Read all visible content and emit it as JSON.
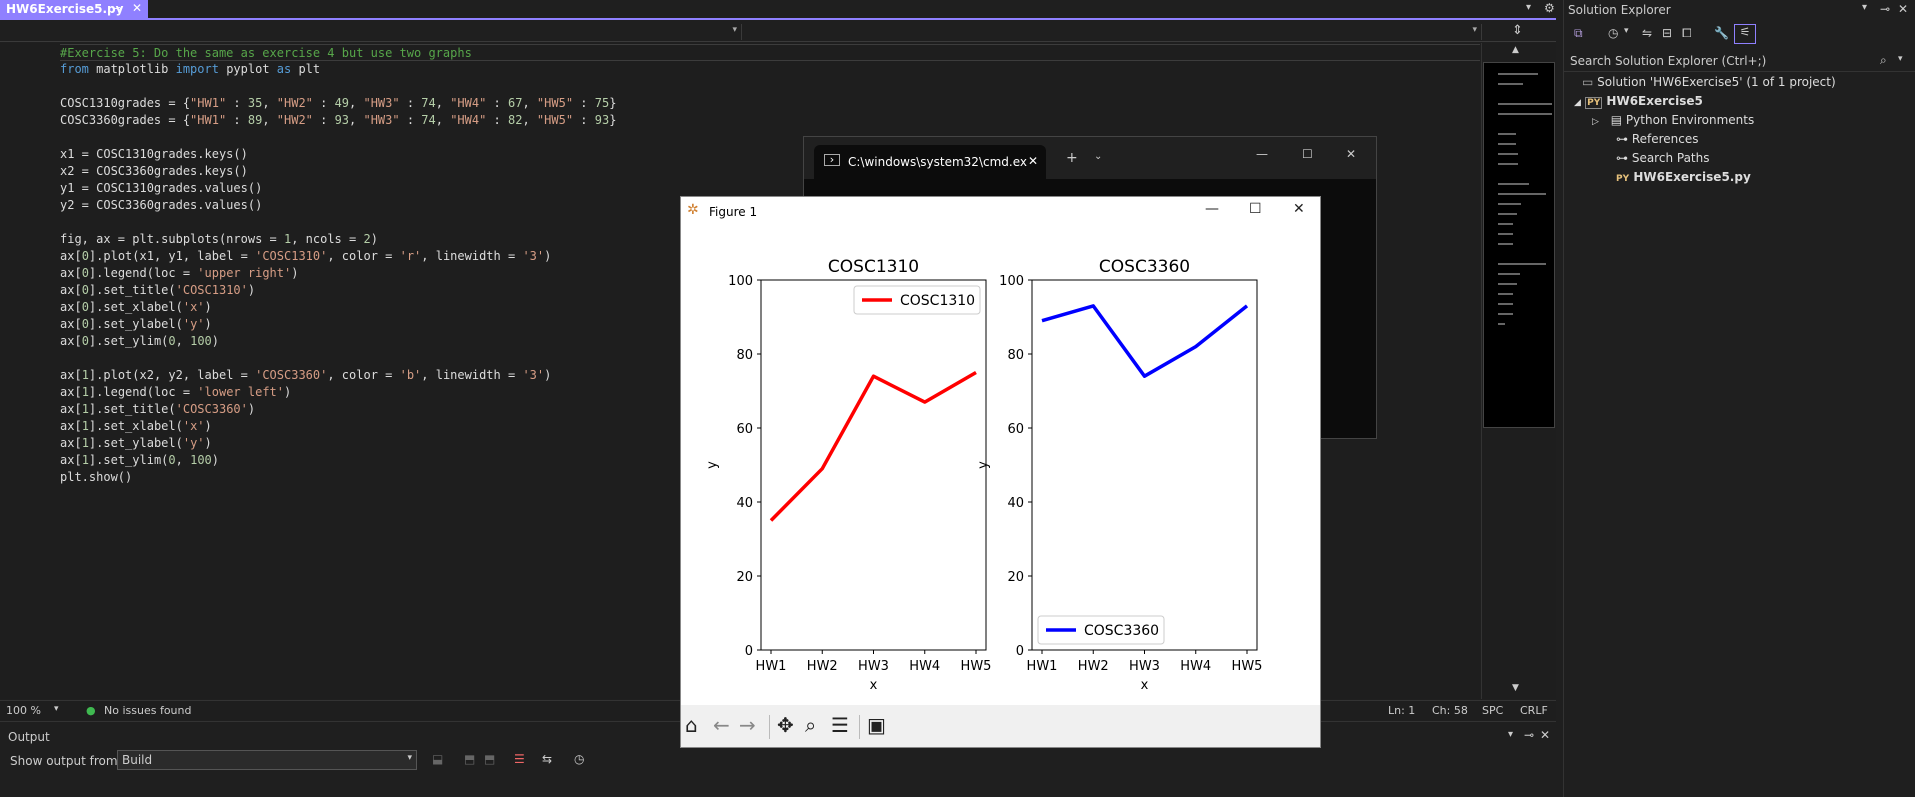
{
  "tab": {
    "title": "HW6Exercise5.py",
    "pin": "⊸",
    "close": "✕"
  },
  "editor": {
    "lines": [
      [
        {
          "t": "#Exercise 5: Do the same as exercise 4 but use two graphs",
          "c": "com"
        }
      ],
      [
        {
          "t": "from",
          "c": "kw"
        },
        {
          "t": " matplotlib ",
          "c": ""
        },
        {
          "t": "import",
          "c": "kw"
        },
        {
          "t": " pyplot ",
          "c": ""
        },
        {
          "t": "as",
          "c": "kw"
        },
        {
          "t": " plt",
          "c": ""
        }
      ],
      [],
      [
        {
          "t": "COSC1310grades = {",
          "c": ""
        },
        {
          "t": "\"HW1\"",
          "c": "str"
        },
        {
          "t": " : ",
          "c": ""
        },
        {
          "t": "35",
          "c": "num"
        },
        {
          "t": ", ",
          "c": ""
        },
        {
          "t": "\"HW2\"",
          "c": "str"
        },
        {
          "t": " : ",
          "c": ""
        },
        {
          "t": "49",
          "c": "num"
        },
        {
          "t": ", ",
          "c": ""
        },
        {
          "t": "\"HW3\"",
          "c": "str"
        },
        {
          "t": " : ",
          "c": ""
        },
        {
          "t": "74",
          "c": "num"
        },
        {
          "t": ", ",
          "c": ""
        },
        {
          "t": "\"HW4\"",
          "c": "str"
        },
        {
          "t": " : ",
          "c": ""
        },
        {
          "t": "67",
          "c": "num"
        },
        {
          "t": ", ",
          "c": ""
        },
        {
          "t": "\"HW5\"",
          "c": "str"
        },
        {
          "t": " : ",
          "c": ""
        },
        {
          "t": "75",
          "c": "num"
        },
        {
          "t": "}",
          "c": ""
        }
      ],
      [
        {
          "t": "COSC3360grades = {",
          "c": ""
        },
        {
          "t": "\"HW1\"",
          "c": "str"
        },
        {
          "t": " : ",
          "c": ""
        },
        {
          "t": "89",
          "c": "num"
        },
        {
          "t": ", ",
          "c": ""
        },
        {
          "t": "\"HW2\"",
          "c": "str"
        },
        {
          "t": " : ",
          "c": ""
        },
        {
          "t": "93",
          "c": "num"
        },
        {
          "t": ", ",
          "c": ""
        },
        {
          "t": "\"HW3\"",
          "c": "str"
        },
        {
          "t": " : ",
          "c": ""
        },
        {
          "t": "74",
          "c": "num"
        },
        {
          "t": ", ",
          "c": ""
        },
        {
          "t": "\"HW4\"",
          "c": "str"
        },
        {
          "t": " : ",
          "c": ""
        },
        {
          "t": "82",
          "c": "num"
        },
        {
          "t": ", ",
          "c": ""
        },
        {
          "t": "\"HW5\"",
          "c": "str"
        },
        {
          "t": " : ",
          "c": ""
        },
        {
          "t": "93",
          "c": "num"
        },
        {
          "t": "}",
          "c": ""
        }
      ],
      [],
      [
        {
          "t": "x1 = COSC1310grades.keys()",
          "c": ""
        }
      ],
      [
        {
          "t": "x2 = COSC3360grades.keys()",
          "c": ""
        }
      ],
      [
        {
          "t": "y1 = COSC1310grades.values()",
          "c": ""
        }
      ],
      [
        {
          "t": "y2 = COSC3360grades.values()",
          "c": ""
        }
      ],
      [],
      [
        {
          "t": "fig, ax = plt.subplots(nrows = ",
          "c": ""
        },
        {
          "t": "1",
          "c": "num"
        },
        {
          "t": ", ncols = ",
          "c": ""
        },
        {
          "t": "2",
          "c": "num"
        },
        {
          "t": ")",
          "c": ""
        }
      ],
      [
        {
          "t": "ax[",
          "c": ""
        },
        {
          "t": "0",
          "c": "num"
        },
        {
          "t": "].plot(x1, y1, label = ",
          "c": ""
        },
        {
          "t": "'COSC1310'",
          "c": "str"
        },
        {
          "t": ", color = ",
          "c": ""
        },
        {
          "t": "'r'",
          "c": "str"
        },
        {
          "t": ", linewidth = ",
          "c": ""
        },
        {
          "t": "'3'",
          "c": "str"
        },
        {
          "t": ")",
          "c": ""
        }
      ],
      [
        {
          "t": "ax[",
          "c": ""
        },
        {
          "t": "0",
          "c": "num"
        },
        {
          "t": "].legend(loc = ",
          "c": ""
        },
        {
          "t": "'upper right'",
          "c": "str"
        },
        {
          "t": ")",
          "c": ""
        }
      ],
      [
        {
          "t": "ax[",
          "c": ""
        },
        {
          "t": "0",
          "c": "num"
        },
        {
          "t": "].set_title(",
          "c": ""
        },
        {
          "t": "'COSC1310'",
          "c": "str"
        },
        {
          "t": ")",
          "c": ""
        }
      ],
      [
        {
          "t": "ax[",
          "c": ""
        },
        {
          "t": "0",
          "c": "num"
        },
        {
          "t": "].set_xlabel(",
          "c": ""
        },
        {
          "t": "'x'",
          "c": "str"
        },
        {
          "t": ")",
          "c": ""
        }
      ],
      [
        {
          "t": "ax[",
          "c": ""
        },
        {
          "t": "0",
          "c": "num"
        },
        {
          "t": "].set_ylabel(",
          "c": ""
        },
        {
          "t": "'y'",
          "c": "str"
        },
        {
          "t": ")",
          "c": ""
        }
      ],
      [
        {
          "t": "ax[",
          "c": ""
        },
        {
          "t": "0",
          "c": "num"
        },
        {
          "t": "].set_ylim(",
          "c": ""
        },
        {
          "t": "0",
          "c": "num"
        },
        {
          "t": ", ",
          "c": ""
        },
        {
          "t": "100",
          "c": "num"
        },
        {
          "t": ")",
          "c": ""
        }
      ],
      [],
      [
        {
          "t": "ax[",
          "c": ""
        },
        {
          "t": "1",
          "c": "num"
        },
        {
          "t": "].plot(x2, y2, label = ",
          "c": ""
        },
        {
          "t": "'COSC3360'",
          "c": "str"
        },
        {
          "t": ", color = ",
          "c": ""
        },
        {
          "t": "'b'",
          "c": "str"
        },
        {
          "t": ", linewidth = ",
          "c": ""
        },
        {
          "t": "'3'",
          "c": "str"
        },
        {
          "t": ")",
          "c": ""
        }
      ],
      [
        {
          "t": "ax[",
          "c": ""
        },
        {
          "t": "1",
          "c": "num"
        },
        {
          "t": "].legend(loc = ",
          "c": ""
        },
        {
          "t": "'lower left'",
          "c": "str"
        },
        {
          "t": ")",
          "c": ""
        }
      ],
      [
        {
          "t": "ax[",
          "c": ""
        },
        {
          "t": "1",
          "c": "num"
        },
        {
          "t": "].set_title(",
          "c": ""
        },
        {
          "t": "'COSC3360'",
          "c": "str"
        },
        {
          "t": ")",
          "c": ""
        }
      ],
      [
        {
          "t": "ax[",
          "c": ""
        },
        {
          "t": "1",
          "c": "num"
        },
        {
          "t": "].set_xlabel(",
          "c": ""
        },
        {
          "t": "'x'",
          "c": "str"
        },
        {
          "t": ")",
          "c": ""
        }
      ],
      [
        {
          "t": "ax[",
          "c": ""
        },
        {
          "t": "1",
          "c": "num"
        },
        {
          "t": "].set_ylabel(",
          "c": ""
        },
        {
          "t": "'y'",
          "c": "str"
        },
        {
          "t": ")",
          "c": ""
        }
      ],
      [
        {
          "t": "ax[",
          "c": ""
        },
        {
          "t": "1",
          "c": "num"
        },
        {
          "t": "].set_ylim(",
          "c": ""
        },
        {
          "t": "0",
          "c": "num"
        },
        {
          "t": ", ",
          "c": ""
        },
        {
          "t": "100",
          "c": "num"
        },
        {
          "t": ")",
          "c": ""
        }
      ],
      [
        {
          "t": "plt.show()",
          "c": ""
        }
      ]
    ]
  },
  "status": {
    "zoom": "100 %",
    "issues": "No issues found",
    "ln": "Ln: 1",
    "ch": "Ch: 58",
    "spc": "SPC",
    "crlf": "CRLF"
  },
  "output": {
    "title": "Output",
    "show_from_label": "Show output from:",
    "show_from_value": "Build"
  },
  "solution_explorer": {
    "title": "Solution Explorer",
    "search_placeholder": "Search Solution Explorer (Ctrl+;)",
    "solution": "Solution 'HW6Exercise5' (1 of 1 project)",
    "project": "HW6Exercise5",
    "items": [
      "Python Environments",
      "References",
      "Search Paths"
    ],
    "file": "HW6Exercise5.py",
    "file_badge": "PY",
    "project_badge": "PY"
  },
  "cmd": {
    "tab_title": "C:\\windows\\system32\\cmd.ex"
  },
  "figure": {
    "title": "Figure 1"
  },
  "colors": {
    "accent": "#8f80ff",
    "red": "#ff0000",
    "blue": "#0000ff"
  },
  "chart_data": [
    {
      "type": "line",
      "title": "COSC1310",
      "xlabel": "x",
      "ylabel": "y",
      "categories": [
        "HW1",
        "HW2",
        "HW3",
        "HW4",
        "HW5"
      ],
      "series": [
        {
          "name": "COSC1310",
          "values": [
            35,
            49,
            74,
            67,
            75
          ],
          "color": "#ff0000"
        }
      ],
      "ylim": [
        0,
        100
      ],
      "yticks": [
        0,
        20,
        40,
        60,
        80,
        100
      ],
      "legend": "upper right"
    },
    {
      "type": "line",
      "title": "COSC3360",
      "xlabel": "x",
      "ylabel": "y",
      "categories": [
        "HW1",
        "HW2",
        "HW3",
        "HW4",
        "HW5"
      ],
      "series": [
        {
          "name": "COSC3360",
          "values": [
            89,
            93,
            74,
            82,
            93
          ],
          "color": "#0000ff"
        }
      ],
      "ylim": [
        0,
        100
      ],
      "yticks": [
        0,
        20,
        40,
        60,
        80,
        100
      ],
      "legend": "lower left"
    }
  ]
}
